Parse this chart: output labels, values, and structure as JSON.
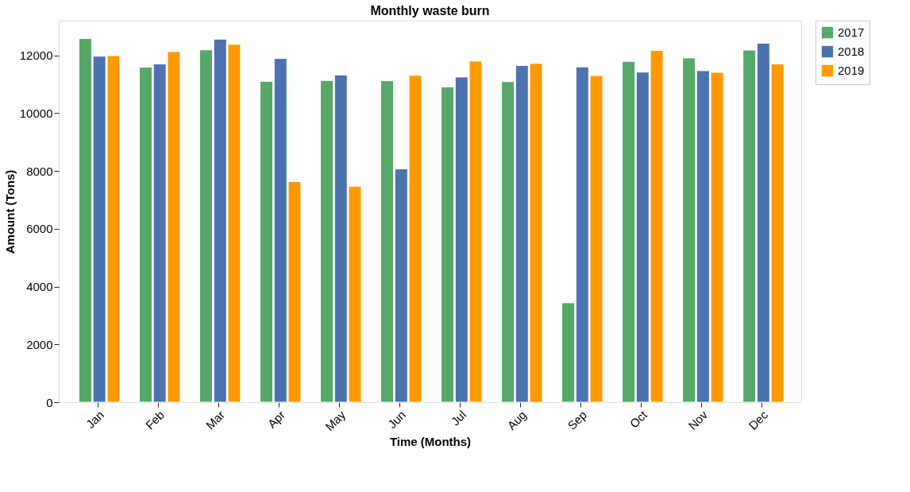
{
  "chart_data": {
    "type": "bar",
    "title": "Monthly waste burn",
    "xlabel": "Time (Months)",
    "ylabel": "Amount (Tons)",
    "categories": [
      "Jan",
      "Feb",
      "Mar",
      "Apr",
      "May",
      "Jun",
      "Jul",
      "Aug",
      "Sep",
      "Oct",
      "Nov",
      "Dec"
    ],
    "series": [
      {
        "name": "2017",
        "color": "#55a868",
        "values": [
          12580,
          11590,
          12190,
          11100,
          11130,
          11120,
          10910,
          11090,
          3440,
          11790,
          11910,
          12180
        ]
      },
      {
        "name": "2018",
        "color": "#4c72b0",
        "values": [
          11970,
          11700,
          12560,
          11890,
          11320,
          8070,
          11250,
          11650,
          11600,
          11420,
          11470,
          12420
        ]
      },
      {
        "name": "2019",
        "color": "#ff9900",
        "values": [
          11990,
          12130,
          12380,
          7630,
          7470,
          11310,
          11800,
          11720,
          11300,
          12170,
          11410,
          11700
        ]
      }
    ],
    "ylim": [
      0,
      13200
    ],
    "yticks": [
      0,
      2000,
      4000,
      6000,
      8000,
      10000,
      12000
    ],
    "grid": false,
    "legend": "top right"
  }
}
